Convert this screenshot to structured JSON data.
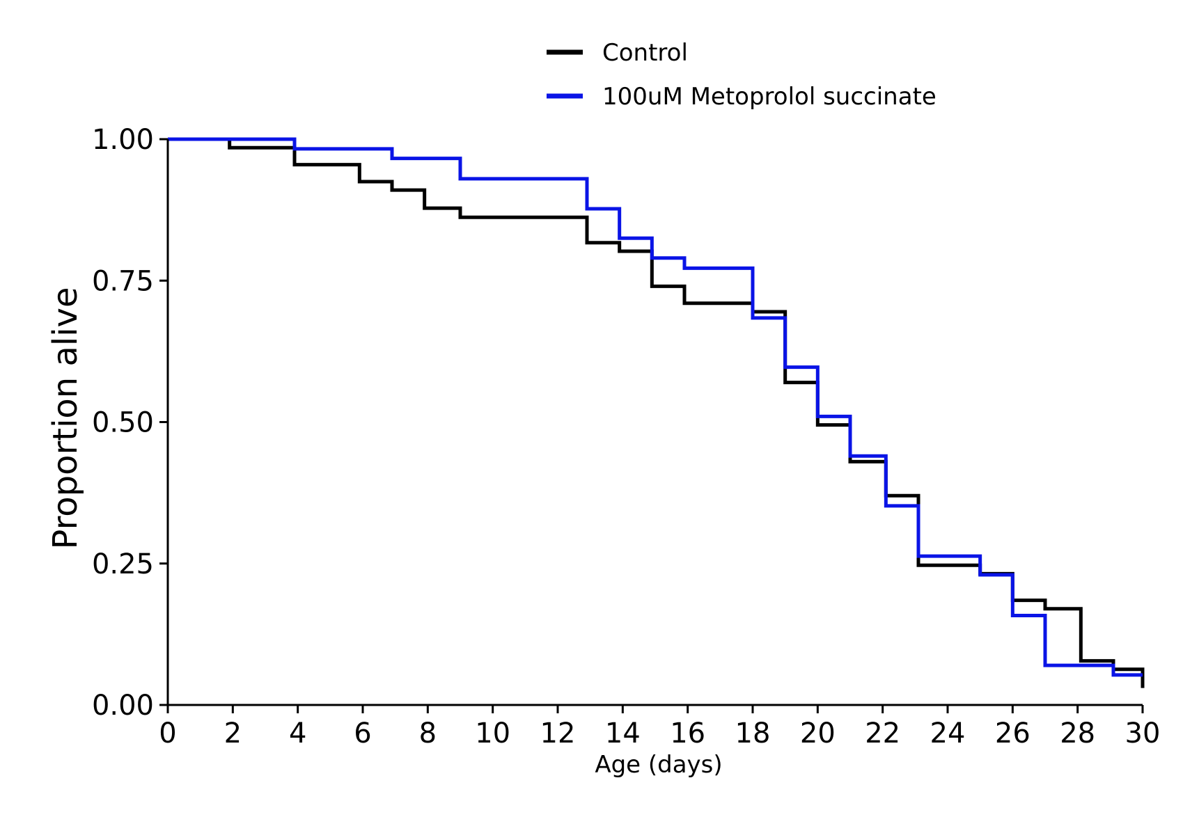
{
  "chart_data": {
    "type": "line",
    "step": "post",
    "xlabel": "Age (days)",
    "ylabel": "Proportion alive",
    "xlim": [
      0,
      30
    ],
    "ylim": [
      0,
      1
    ],
    "xticks": [
      0,
      2,
      4,
      6,
      8,
      10,
      12,
      14,
      16,
      18,
      20,
      22,
      24,
      26,
      28,
      30
    ],
    "xtick_labels": [
      "0",
      "2",
      "4",
      "6",
      "8",
      "10",
      "12",
      "14",
      "16",
      "18",
      "20",
      "22",
      "24",
      "26",
      "28",
      "30"
    ],
    "yticks": [
      0,
      0.25,
      0.5,
      0.75,
      1.0
    ],
    "ytick_labels": [
      "0.00",
      "0.25",
      "0.50",
      "0.75",
      "1.00"
    ],
    "grid": false,
    "legend_position": "top-center",
    "series": [
      {
        "name": "Control",
        "color": "#000000",
        "x": [
          0,
          1.9,
          3.9,
          5.9,
          6.9,
          7.9,
          9,
          12.9,
          13.9,
          14.9,
          15.9,
          18,
          19,
          20,
          21,
          22.1,
          23.1,
          25,
          26,
          27,
          28.1,
          29.1,
          30
        ],
        "y": [
          1.0,
          0.985,
          0.955,
          0.925,
          0.91,
          0.878,
          0.862,
          0.817,
          0.802,
          0.74,
          0.71,
          0.695,
          0.57,
          0.495,
          0.43,
          0.37,
          0.247,
          0.232,
          0.185,
          0.17,
          0.078,
          0.063,
          0.03
        ]
      },
      {
        "name": "100uM Metoprolol succinate",
        "color": "#0a14e6",
        "x": [
          0,
          3.9,
          6.9,
          9,
          12.9,
          13.9,
          14.9,
          15.9,
          18,
          19,
          20,
          21,
          22.1,
          23.1,
          25,
          26,
          27,
          29.1,
          30
        ],
        "y": [
          1.0,
          0.983,
          0.966,
          0.93,
          0.877,
          0.825,
          0.79,
          0.772,
          0.684,
          0.597,
          0.51,
          0.44,
          0.352,
          0.263,
          0.23,
          0.158,
          0.07,
          0.053,
          0.053
        ]
      }
    ]
  }
}
